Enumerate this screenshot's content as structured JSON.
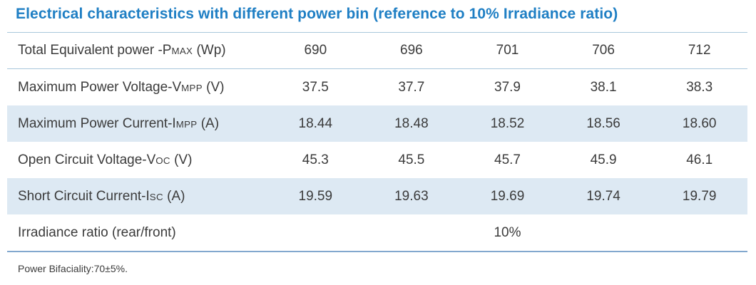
{
  "title": "Electrical characteristics with different power bin (reference to 10%  Irradiance ratio)",
  "colors": {
    "title_blue": "#1f7fc4",
    "row_shade": "#dde9f3",
    "separator_line": "#a9c7db",
    "bottom_line": "#82a8ce",
    "text": "#3b3b3b"
  },
  "table": {
    "rows": [
      {
        "label_prefix": "Total Equivalent power -P",
        "label_sub": "MAX",
        "label_suffix": " (Wp)",
        "values": [
          "690",
          "696",
          "701",
          "706",
          "712"
        ]
      },
      {
        "label_prefix": "Maximum Power Voltage-V",
        "label_sub": "MPP",
        "label_suffix": " (V)",
        "values": [
          "37.5",
          "37.7",
          "37.9",
          "38.1",
          "38.3"
        ]
      },
      {
        "label_prefix": "Maximum Power Current-I",
        "label_sub": "MPP",
        "label_suffix": " (A)",
        "values": [
          "18.44",
          "18.48",
          "18.52",
          "18.56",
          "18.60"
        ]
      },
      {
        "label_prefix": "Open Circuit Voltage-V",
        "label_sub": "OC",
        "label_suffix": " (V)",
        "values": [
          "45.3",
          "45.5",
          "45.7",
          "45.9",
          "46.1"
        ]
      },
      {
        "label_prefix": "Short Circuit Current-I",
        "label_sub": "SC",
        "label_suffix": " (A)",
        "values": [
          "19.59",
          "19.63",
          "19.69",
          "19.74",
          "19.79"
        ]
      },
      {
        "label_prefix": "Irradiance ratio (rear/front)",
        "label_sub": "",
        "label_suffix": "",
        "values": [
          "",
          "",
          "10%",
          "",
          ""
        ]
      }
    ]
  },
  "footnote": "Power Bifaciality:70±5%."
}
